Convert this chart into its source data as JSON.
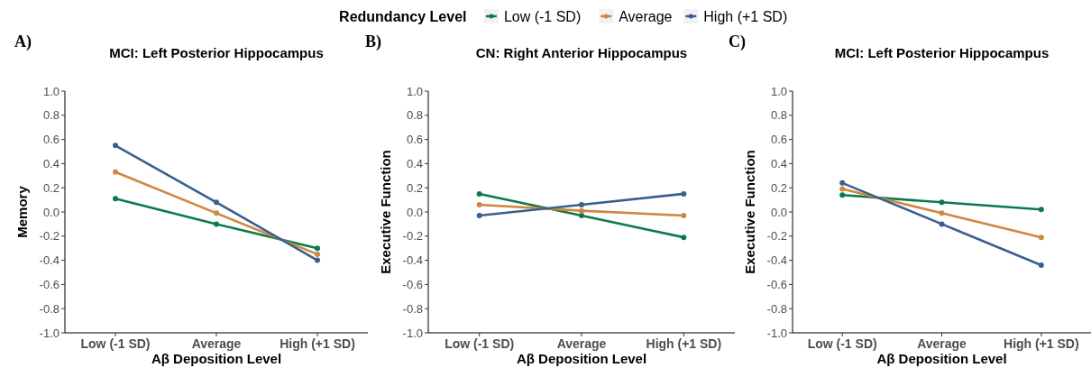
{
  "chart_data": [
    {
      "type": "line",
      "title": "MCI: Left Posterior Hippocampus",
      "xlabel": "Aβ Deposition Level",
      "ylabel": "Memory",
      "annotations": [
        "A)"
      ],
      "legend_title": "Redundancy Level",
      "legend": "top",
      "marker": "circle",
      "categories": [
        "Low (-1 SD)",
        "Average",
        "High (+1 SD)"
      ],
      "ylim": [
        -1,
        1
      ],
      "yticks": [
        {
          "value": -1,
          "label": "-1.0"
        },
        {
          "value": -0.8,
          "label": "-0.8"
        },
        {
          "value": -0.6,
          "label": "-0.6"
        },
        {
          "value": -0.4,
          "label": "-0.4"
        },
        {
          "value": -0.2,
          "label": "-0.2"
        },
        {
          "value": 0,
          "label": "0.0"
        },
        {
          "value": 0.2,
          "label": "0.2"
        },
        {
          "value": 0.4,
          "label": "0.4"
        },
        {
          "value": 0.6,
          "label": "0.6"
        },
        {
          "value": 0.8,
          "label": "0.8"
        },
        {
          "value": 1,
          "label": "1.0"
        }
      ],
      "series": [
        {
          "name": "Low (-1 SD)",
          "color": "#0b7a4b",
          "values": [
            0.11,
            -0.1,
            -0.3
          ]
        },
        {
          "name": "Average",
          "color": "#d0873f",
          "values": [
            0.33,
            -0.01,
            -0.35
          ]
        },
        {
          "name": "High (+1 SD)",
          "color": "#3a5f8f",
          "values": [
            0.55,
            0.08,
            -0.4
          ]
        }
      ]
    },
    {
      "type": "line",
      "title": "CN: Right Anterior Hippocampus",
      "xlabel": "Aβ Deposition Level",
      "ylabel": "Executive Function",
      "annotations": [
        "B)"
      ],
      "marker": "circle",
      "categories": [
        "Low (-1 SD)",
        "Average",
        "High (+1 SD)"
      ],
      "ylim": [
        -1,
        1
      ],
      "yticks": [
        {
          "value": -1,
          "label": "-1.0"
        },
        {
          "value": -0.8,
          "label": "-0.8"
        },
        {
          "value": -0.6,
          "label": "-0.6"
        },
        {
          "value": -0.4,
          "label": "-0.4"
        },
        {
          "value": -0.2,
          "label": "-0.2"
        },
        {
          "value": 0,
          "label": "0.0"
        },
        {
          "value": 0.2,
          "label": "0.2"
        },
        {
          "value": 0.4,
          "label": "0.4"
        },
        {
          "value": 0.6,
          "label": "0.6"
        },
        {
          "value": 0.8,
          "label": "0.8"
        },
        {
          "value": 1,
          "label": "1.0"
        }
      ],
      "series": [
        {
          "color": "#0b7a4b",
          "values": [
            0.15,
            -0.03,
            -0.21
          ]
        },
        {
          "color": "#d0873f",
          "values": [
            0.06,
            0.01,
            -0.03
          ]
        },
        {
          "color": "#3a5f8f",
          "values": [
            -0.03,
            0.06,
            0.15
          ]
        }
      ]
    },
    {
      "type": "line",
      "title": "MCI: Left Posterior Hippocampus",
      "xlabel": "Aβ Deposition Level",
      "ylabel": "Executive Function",
      "annotations": [
        "C)"
      ],
      "marker": "circle",
      "categories": [
        "Low (-1 SD)",
        "Average",
        "High (+1 SD)"
      ],
      "ylim": [
        -1,
        1
      ],
      "yticks": [
        {
          "value": -1,
          "label": "-1.0"
        },
        {
          "value": -0.8,
          "label": "-0.8"
        },
        {
          "value": -0.6,
          "label": "-0.6"
        },
        {
          "value": -0.4,
          "label": "-0.4"
        },
        {
          "value": -0.2,
          "label": "-0.2"
        },
        {
          "value": 0,
          "label": "0.0"
        },
        {
          "value": 0.2,
          "label": "0.2"
        },
        {
          "value": 0.4,
          "label": "0.4"
        },
        {
          "value": 0.6,
          "label": "0.6"
        },
        {
          "value": 0.8,
          "label": "0.8"
        },
        {
          "value": 1,
          "label": "1.0"
        }
      ],
      "series": [
        {
          "color": "#0b7a4b",
          "values": [
            0.14,
            0.08,
            0.02
          ]
        },
        {
          "color": "#d0873f",
          "values": [
            0.19,
            -0.01,
            -0.21
          ]
        },
        {
          "color": "#3a5f8f",
          "values": [
            0.24,
            -0.1,
            -0.44
          ]
        }
      ]
    }
  ]
}
